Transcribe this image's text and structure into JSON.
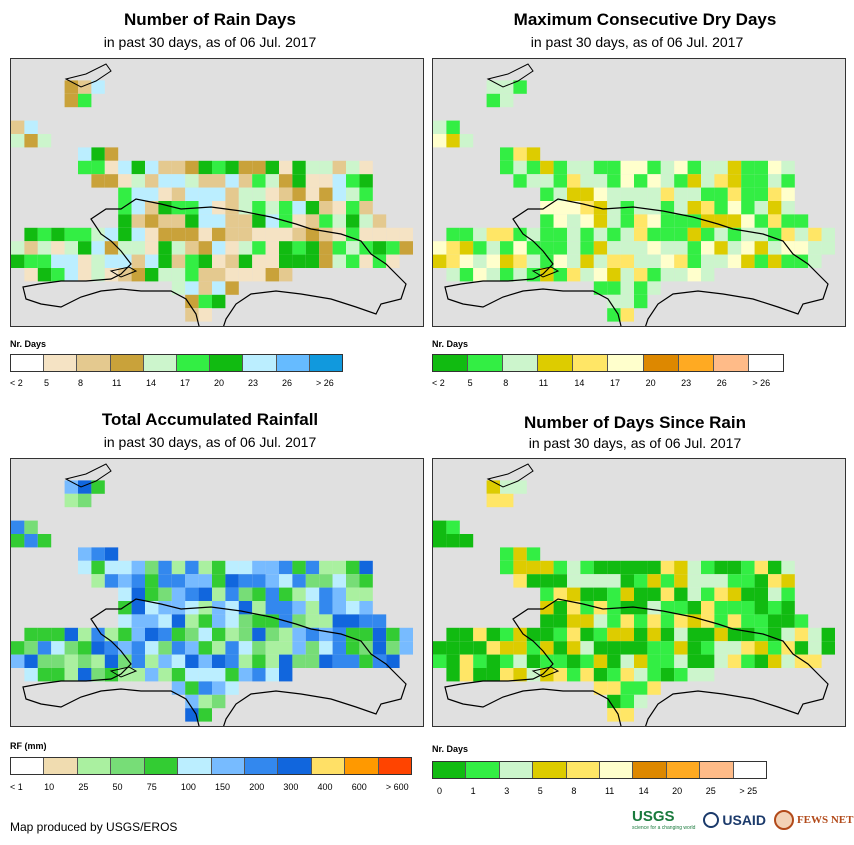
{
  "panels": [
    {
      "title": "Number of Rain Days",
      "subtitle": "in past 30 days, as of 06 Jul. 2017",
      "legend_title": "Nr. Days",
      "legend_colors": [
        "#ffffff",
        "#f5e3c4",
        "#e4c98f",
        "#c9a23a",
        "#ccf5cc",
        "#33ee44",
        "#11bb11",
        "#bbeeff",
        "#66bbff",
        "#1199dd"
      ],
      "legend_ticks": [
        "< 2",
        "5",
        "8",
        "11",
        "14",
        "17",
        "20",
        "23",
        "26",
        "> 26"
      ],
      "palette": [
        "#f5e3c4",
        "#e4c98f",
        "#c9a23a",
        "#ccf5cc",
        "#33ee44",
        "#11bb11",
        "#bbeeff"
      ],
      "seed": 3
    },
    {
      "title": "Maximum Consecutive Dry Days",
      "subtitle": "in past 30 days, as of 06 Jul. 2017",
      "legend_title": "Nr. Days",
      "legend_colors": [
        "#11bb11",
        "#33ee44",
        "#ccf5cc",
        "#ddcc00",
        "#ffe666",
        "#ffffcc",
        "#dd8800",
        "#ffaa22",
        "#ffbb88",
        "#ffffff"
      ],
      "legend_ticks": [
        "< 2",
        "5",
        "8",
        "11",
        "14",
        "17",
        "20",
        "23",
        "26",
        "> 26"
      ],
      "palette": [
        "#33ee44",
        "#33ee44",
        "#ccf5cc",
        "#ccf5cc",
        "#ddcc00",
        "#ffe666",
        "#ffffcc"
      ],
      "seed": 7
    },
    {
      "title": "Total Accumulated Rainfall",
      "subtitle": "in past 30 days, as of 06 Jul. 2017",
      "legend_title": "RF (mm)",
      "legend_colors": [
        "#ffffff",
        "#f0dcb0",
        "#aaf0a0",
        "#77dd77",
        "#33cc33",
        "#bbeeff",
        "#77bbff",
        "#3388ee",
        "#1166dd",
        "#ffe066",
        "#ff9900",
        "#ff4400"
      ],
      "legend_ticks": [
        "< 1",
        "10",
        "25",
        "50",
        "75",
        "100",
        "150",
        "200",
        "300",
        "400",
        "600",
        "> 600"
      ],
      "palette": [
        "#aaf0a0",
        "#77dd77",
        "#33cc33",
        "#bbeeff",
        "#77bbff",
        "#3388ee",
        "#1166dd"
      ],
      "seed": 11
    },
    {
      "title": "Number of Days Since Rain",
      "subtitle": "in past 30 days, as of 06 Jul. 2017",
      "legend_title": "Nr. Days",
      "legend_colors": [
        "#11bb11",
        "#33ee44",
        "#ccf5cc",
        "#ddcc00",
        "#ffe666",
        "#ffffcc",
        "#dd8800",
        "#ffaa22",
        "#ffbb88",
        "#ffffff"
      ],
      "legend_ticks": [
        "0",
        "1",
        "3",
        "5",
        "8",
        "11",
        "14",
        "20",
        "25",
        "> 25"
      ],
      "palette": [
        "#11bb11",
        "#11bb11",
        "#33ee44",
        "#33ee44",
        "#ccf5cc",
        "#ffe666",
        "#ddcc00"
      ],
      "seed": 19
    }
  ],
  "footer": "Map produced by USGS/EROS",
  "logos": {
    "usgs": "USGS",
    "usgs_tagline": "science for a changing world",
    "usaid": "USAID",
    "fews": "FEWS NET"
  }
}
